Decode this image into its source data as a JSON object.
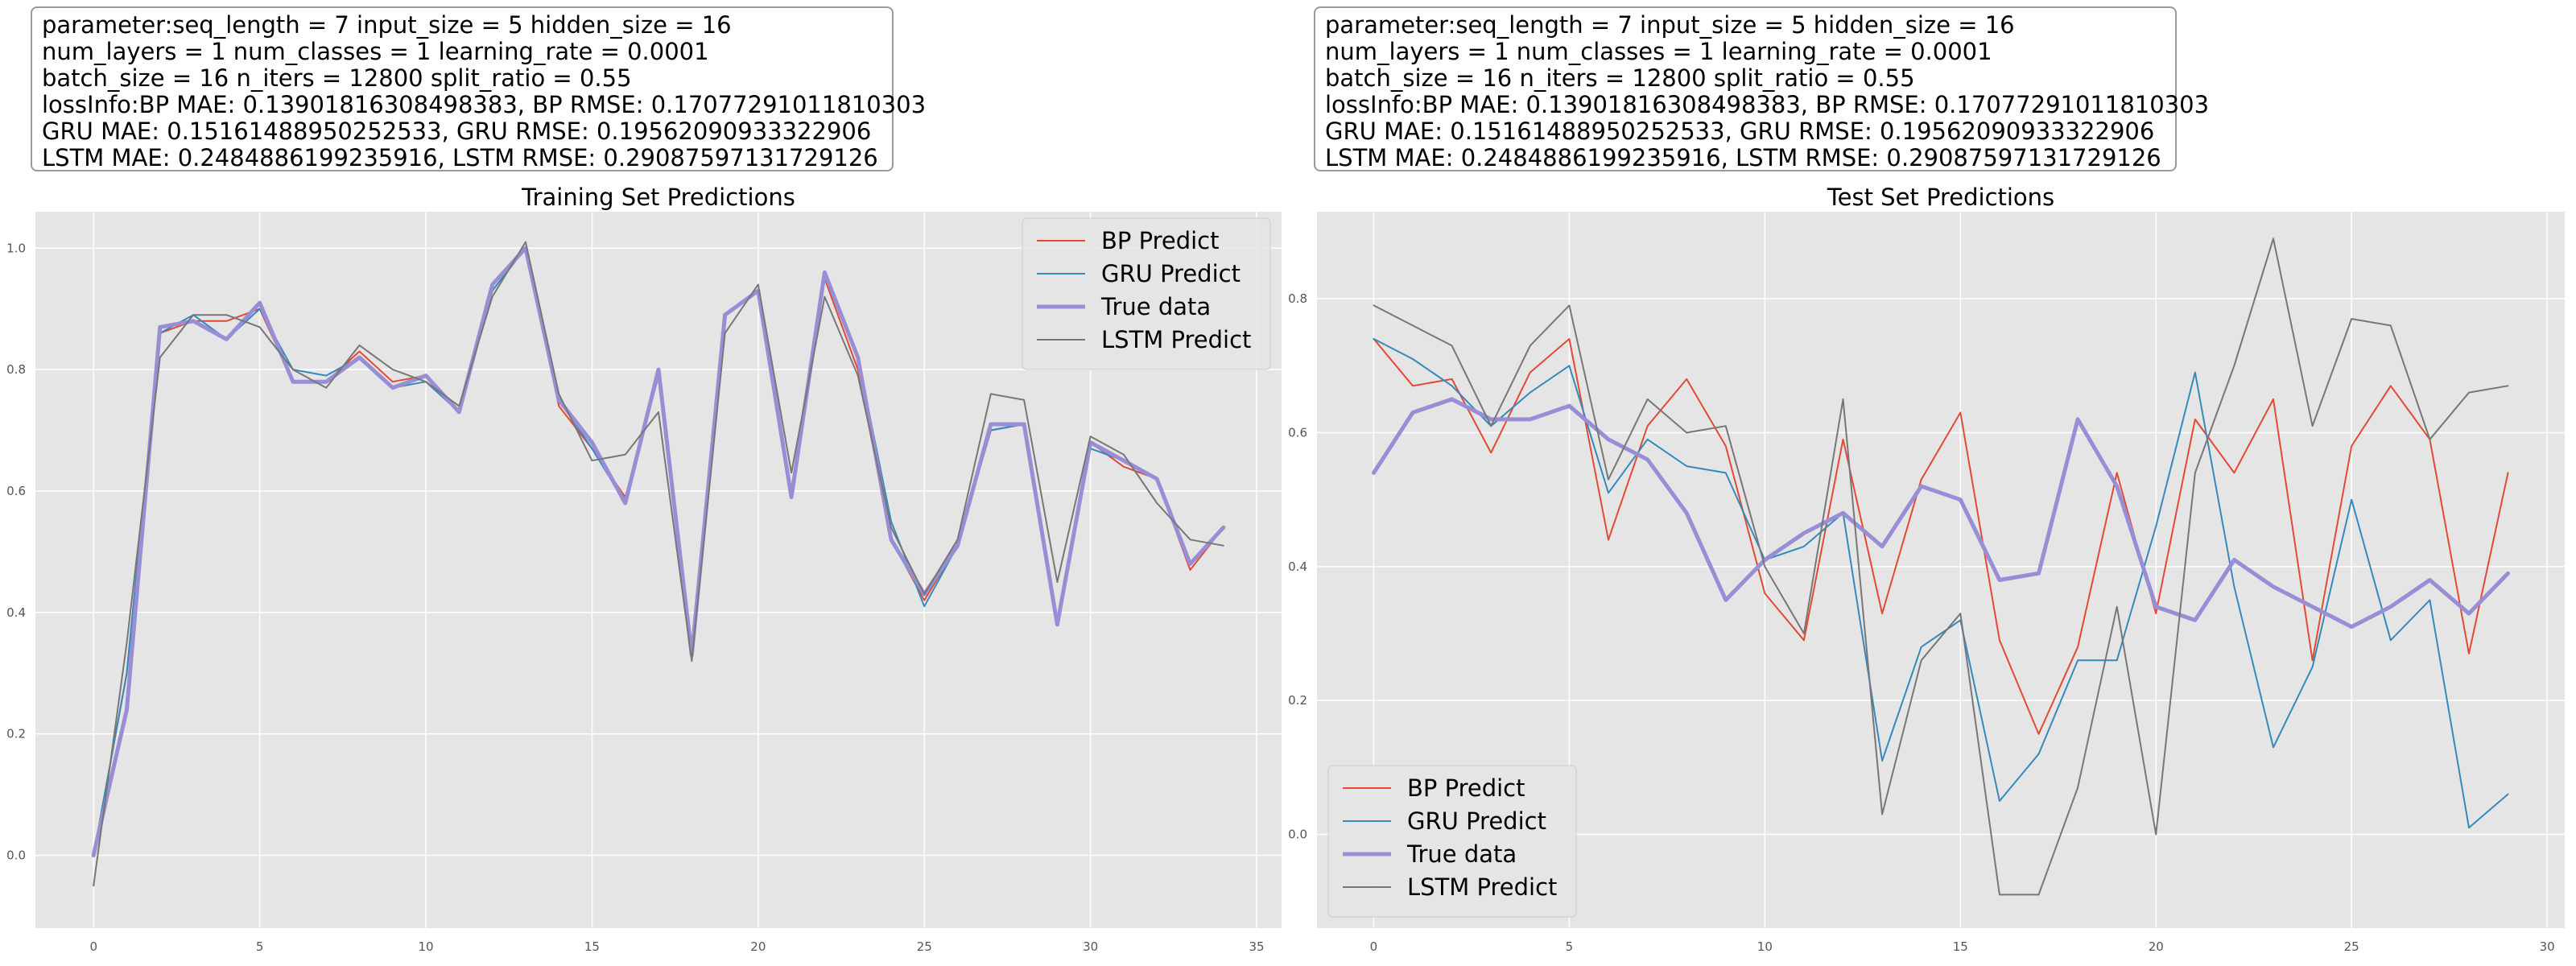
{
  "info": {
    "lines": [
      "parameter:seq_length = 7 input_size = 5 hidden_size = 16",
      "num_layers = 1 num_classes = 1 learning_rate = 0.0001",
      "batch_size = 16 n_iters = 12800 split_ratio = 0.55",
      "lossInfo:BP MAE: 0.13901816308498383, BP RMSE: 0.17077291011810303",
      "GRU MAE: 0.15161488950252533, GRU RMSE: 0.19562090933322906",
      "LSTM MAE: 0.2484886199235916, LSTM RMSE: 0.29087597131729126"
    ]
  },
  "chart_data": [
    {
      "type": "line",
      "title": "Training Set Predictions",
      "xlabel": "",
      "ylabel": "",
      "xlim": [
        -1.75,
        35.75
      ],
      "ylim": [
        -0.12,
        1.06
      ],
      "xticks": [
        0,
        5,
        10,
        15,
        20,
        25,
        30,
        35
      ],
      "xtick_labels": [
        "0",
        "5",
        "10",
        "15",
        "20",
        "25",
        "30",
        "35"
      ],
      "yticks": [
        0.0,
        0.2,
        0.4,
        0.6,
        0.8,
        1.0
      ],
      "ytick_labels": [
        "0.0",
        "0.2",
        "0.4",
        "0.6",
        "0.8",
        "1.0"
      ],
      "grid": true,
      "legend_position": "top-right",
      "x": [
        0,
        1,
        2,
        3,
        4,
        5,
        6,
        7,
        8,
        9,
        10,
        11,
        12,
        13,
        14,
        15,
        16,
        17,
        18,
        19,
        20,
        21,
        22,
        23,
        24,
        25,
        26,
        27,
        28,
        29,
        30,
        31,
        32,
        33,
        34
      ],
      "series": [
        {
          "name": "BP Predict",
          "color": "#e24a33",
          "width": 2,
          "values": [
            0.0,
            0.3,
            0.86,
            0.88,
            0.88,
            0.9,
            0.78,
            0.78,
            0.83,
            0.78,
            0.79,
            0.73,
            0.93,
            1.0,
            0.74,
            0.67,
            0.59,
            0.79,
            0.33,
            0.89,
            0.93,
            0.59,
            0.95,
            0.8,
            0.52,
            0.42,
            0.51,
            0.7,
            0.71,
            0.38,
            0.68,
            0.64,
            0.62,
            0.47,
            0.54
          ]
        },
        {
          "name": "GRU Predict",
          "color": "#348abd",
          "width": 2,
          "values": [
            0.0,
            0.3,
            0.86,
            0.89,
            0.85,
            0.9,
            0.8,
            0.79,
            0.82,
            0.77,
            0.78,
            0.73,
            0.93,
            1.0,
            0.75,
            0.67,
            0.58,
            0.79,
            0.33,
            0.89,
            0.93,
            0.59,
            0.96,
            0.82,
            0.55,
            0.41,
            0.51,
            0.7,
            0.71,
            0.38,
            0.67,
            0.65,
            0.62,
            0.48,
            0.54
          ]
        },
        {
          "name": "True data",
          "color": "#988ed5",
          "width": 5,
          "values": [
            0.0,
            0.24,
            0.87,
            0.88,
            0.85,
            0.91,
            0.78,
            0.78,
            0.82,
            0.77,
            0.79,
            0.73,
            0.94,
            1.0,
            0.75,
            0.68,
            0.58,
            0.8,
            0.33,
            0.89,
            0.93,
            0.59,
            0.96,
            0.82,
            0.52,
            0.43,
            0.51,
            0.71,
            0.71,
            0.38,
            0.68,
            0.65,
            0.62,
            0.48,
            0.54
          ]
        },
        {
          "name": "LSTM Predict",
          "color": "#777777",
          "width": 2,
          "values": [
            -0.05,
            0.35,
            0.82,
            0.89,
            0.89,
            0.87,
            0.8,
            0.77,
            0.84,
            0.8,
            0.78,
            0.74,
            0.92,
            1.01,
            0.76,
            0.65,
            0.66,
            0.73,
            0.32,
            0.86,
            0.94,
            0.63,
            0.92,
            0.79,
            0.54,
            0.43,
            0.52,
            0.76,
            0.75,
            0.45,
            0.69,
            0.66,
            0.58,
            0.52,
            0.51
          ]
        }
      ]
    },
    {
      "type": "line",
      "title": "Test Set Predictions",
      "xlabel": "",
      "ylabel": "",
      "xlim": [
        -1.45,
        30.45
      ],
      "ylim": [
        -0.14,
        0.93
      ],
      "xticks": [
        0,
        5,
        10,
        15,
        20,
        25,
        30
      ],
      "xtick_labels": [
        "0",
        "5",
        "10",
        "15",
        "20",
        "25",
        "30"
      ],
      "yticks": [
        0.0,
        0.2,
        0.4,
        0.6,
        0.8
      ],
      "ytick_labels": [
        "0.0",
        "0.2",
        "0.4",
        "0.6",
        "0.8"
      ],
      "grid": true,
      "legend_position": "bottom-left",
      "x": [
        0,
        1,
        2,
        3,
        4,
        5,
        6,
        7,
        8,
        9,
        10,
        11,
        12,
        13,
        14,
        15,
        16,
        17,
        18,
        19,
        20,
        21,
        22,
        23,
        24,
        25,
        26,
        27,
        28,
        29
      ],
      "series": [
        {
          "name": "BP Predict",
          "color": "#e24a33",
          "width": 2,
          "values": [
            0.74,
            0.67,
            0.68,
            0.57,
            0.69,
            0.74,
            0.44,
            0.61,
            0.68,
            0.58,
            0.36,
            0.29,
            0.59,
            0.33,
            0.53,
            0.63,
            0.29,
            0.15,
            0.28,
            0.54,
            0.33,
            0.62,
            0.54,
            0.65,
            0.26,
            0.58,
            0.67,
            0.59,
            0.27,
            0.54
          ]
        },
        {
          "name": "GRU Predict",
          "color": "#348abd",
          "width": 2,
          "values": [
            0.74,
            0.71,
            0.67,
            0.61,
            0.66,
            0.7,
            0.51,
            0.59,
            0.55,
            0.54,
            0.41,
            0.43,
            0.48,
            0.11,
            0.28,
            0.32,
            0.05,
            0.12,
            0.26,
            0.26,
            0.46,
            0.69,
            0.37,
            0.13,
            0.25,
            0.5,
            0.29,
            0.35,
            0.01,
            0.06
          ]
        },
        {
          "name": "True data",
          "color": "#988ed5",
          "width": 5,
          "values": [
            0.54,
            0.63,
            0.65,
            0.62,
            0.62,
            0.64,
            0.59,
            0.56,
            0.48,
            0.35,
            0.41,
            0.45,
            0.48,
            0.43,
            0.52,
            0.5,
            0.38,
            0.39,
            0.62,
            0.52,
            0.34,
            0.32,
            0.41,
            0.37,
            0.34,
            0.31,
            0.34,
            0.38,
            0.33,
            0.39
          ]
        },
        {
          "name": "LSTM Predict",
          "color": "#777777",
          "width": 2,
          "values": [
            0.79,
            0.76,
            0.73,
            0.61,
            0.73,
            0.79,
            0.53,
            0.65,
            0.6,
            0.61,
            0.4,
            0.3,
            0.65,
            0.03,
            0.26,
            0.33,
            -0.09,
            -0.09,
            0.07,
            0.34,
            0.0,
            0.54,
            0.7,
            0.89,
            0.61,
            0.77,
            0.76,
            0.59,
            0.66,
            0.67
          ]
        }
      ]
    }
  ]
}
